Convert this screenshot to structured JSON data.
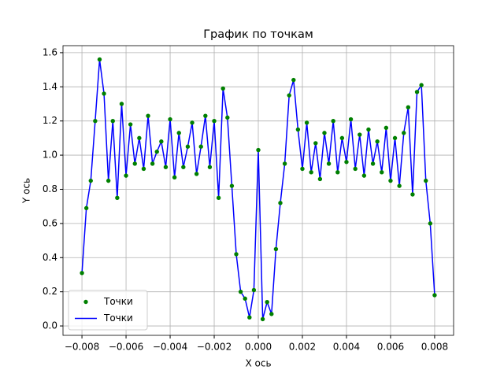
{
  "chart_data": {
    "type": "line",
    "title": "График по точкам",
    "x_label": "X ось",
    "y_label": "Y ось",
    "x": [
      -0.008,
      -0.0078,
      -0.0076,
      -0.0074,
      -0.0072,
      -0.007,
      -0.0068,
      -0.0066,
      -0.0064,
      -0.0062,
      -0.006,
      -0.0058,
      -0.0056,
      -0.0054,
      -0.0052,
      -0.005,
      -0.0048,
      -0.0046,
      -0.0044,
      -0.0042,
      -0.004,
      -0.0038,
      -0.0036,
      -0.0034,
      -0.0032,
      -0.003,
      -0.0028,
      -0.0026,
      -0.0024,
      -0.0022,
      -0.002,
      -0.0018,
      -0.0016,
      -0.0014,
      -0.0012,
      -0.001,
      -0.0008,
      -0.0006,
      -0.0004,
      -0.0002,
      0,
      0.0002,
      0.0004,
      0.0006,
      0.0008,
      0.001,
      0.0012,
      0.0014,
      0.0016,
      0.0018,
      0.002,
      0.0022,
      0.0024,
      0.0026,
      0.0028,
      0.003,
      0.0032,
      0.0034,
      0.0036,
      0.0038,
      0.004,
      0.0042,
      0.0044,
      0.0046,
      0.0048,
      0.005,
      0.0052,
      0.0054,
      0.0056,
      0.0058,
      0.006,
      0.0062,
      0.0064,
      0.0066,
      0.0068,
      0.007,
      0.0072,
      0.0074,
      0.0076,
      0.0078,
      0.008
    ],
    "series": [
      {
        "name": "Точки",
        "color": "#008000",
        "marker": "o",
        "values": [
          0.31,
          0.69,
          0.85,
          1.2,
          1.56,
          1.36,
          0.85,
          1.2,
          0.75,
          1.3,
          0.88,
          1.18,
          0.95,
          1.1,
          0.92,
          1.23,
          0.95,
          1.02,
          1.08,
          0.93,
          1.21,
          0.87,
          1.13,
          0.93,
          1.05,
          1.19,
          0.89,
          1.05,
          1.23,
          0.93,
          1.2,
          0.75,
          1.39,
          1.22,
          0.82,
          0.42,
          0.2,
          0.16,
          0.05,
          0.21,
          1.03,
          0.04,
          0.14,
          0.07,
          0.45,
          0.72,
          0.95,
          1.35,
          1.44,
          1.15,
          0.92,
          1.19,
          0.9,
          1.07,
          0.86,
          1.13,
          0.95,
          1.2,
          0.9,
          1.1,
          0.96,
          1.21,
          0.92,
          1.12,
          0.88,
          1.15,
          0.95,
          1.08,
          0.9,
          1.16,
          0.85,
          1.1,
          0.82,
          1.13,
          1.28,
          0.77,
          1.37,
          1.41,
          0.85,
          0.6,
          0.18
        ]
      },
      {
        "name": "Точки",
        "color": "#0000ff",
        "linestyle": "-",
        "values": [
          0.31,
          0.69,
          0.85,
          1.2,
          1.56,
          1.36,
          0.85,
          1.2,
          0.75,
          1.3,
          0.88,
          1.18,
          0.95,
          1.1,
          0.92,
          1.23,
          0.95,
          1.02,
          1.08,
          0.93,
          1.21,
          0.87,
          1.13,
          0.93,
          1.05,
          1.19,
          0.89,
          1.05,
          1.23,
          0.93,
          1.2,
          0.75,
          1.39,
          1.22,
          0.82,
          0.42,
          0.2,
          0.16,
          0.05,
          0.21,
          1.03,
          0.04,
          0.14,
          0.07,
          0.45,
          0.72,
          0.95,
          1.35,
          1.44,
          1.15,
          0.92,
          1.19,
          0.9,
          1.07,
          0.86,
          1.13,
          0.95,
          1.2,
          0.9,
          1.1,
          0.96,
          1.21,
          0.92,
          1.12,
          0.88,
          1.15,
          0.95,
          1.08,
          0.9,
          1.16,
          0.85,
          1.1,
          0.82,
          1.13,
          1.28,
          0.77,
          1.37,
          1.41,
          0.85,
          0.6,
          0.18
        ]
      }
    ],
    "xlim": [
      -0.00886,
      0.00886
    ],
    "xticks": [
      {
        "value": -0.008,
        "label": "−0.008"
      },
      {
        "value": -0.006,
        "label": "−0.006"
      },
      {
        "value": -0.004,
        "label": "−0.004"
      },
      {
        "value": -0.002,
        "label": "−0.002"
      },
      {
        "value": 0,
        "label": "0.000"
      },
      {
        "value": 0.002,
        "label": "0.002"
      },
      {
        "value": 0.004,
        "label": "0.004"
      },
      {
        "value": 0.006,
        "label": "0.006"
      },
      {
        "value": 0.008,
        "label": "0.008"
      }
    ],
    "ylim": [
      -0.055,
      1.641
    ],
    "yticks": [
      {
        "value": 0,
        "label": "0.0"
      },
      0.2,
      0.4,
      0.6,
      0.8,
      {
        "value": 1,
        "label": "1.0"
      },
      1.2,
      1.4,
      1.6
    ],
    "grid": true,
    "legend": "lower left"
  }
}
